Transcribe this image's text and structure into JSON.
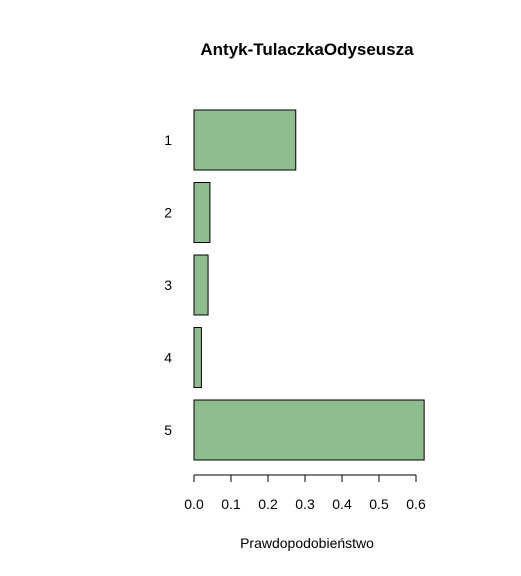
{
  "chart_data": {
    "type": "bar",
    "orientation": "horizontal",
    "title": "Antyk-TulaczkaOdyseusza",
    "xlabel": "Prawdopodobieństwo",
    "ylabel": "",
    "categories": [
      "1",
      "2",
      "3",
      "4",
      "5"
    ],
    "values": [
      0.275,
      0.043,
      0.038,
      0.02,
      0.622
    ],
    "xlim": [
      0,
      0.6
    ],
    "xticks": [
      "0.0",
      "0.1",
      "0.2",
      "0.3",
      "0.4",
      "0.5",
      "0.6"
    ],
    "grid": false,
    "legend": "none",
    "colors": {
      "bar_fill": "#8fbc8f",
      "bar_stroke": "#000000",
      "axis": "#000000"
    }
  }
}
